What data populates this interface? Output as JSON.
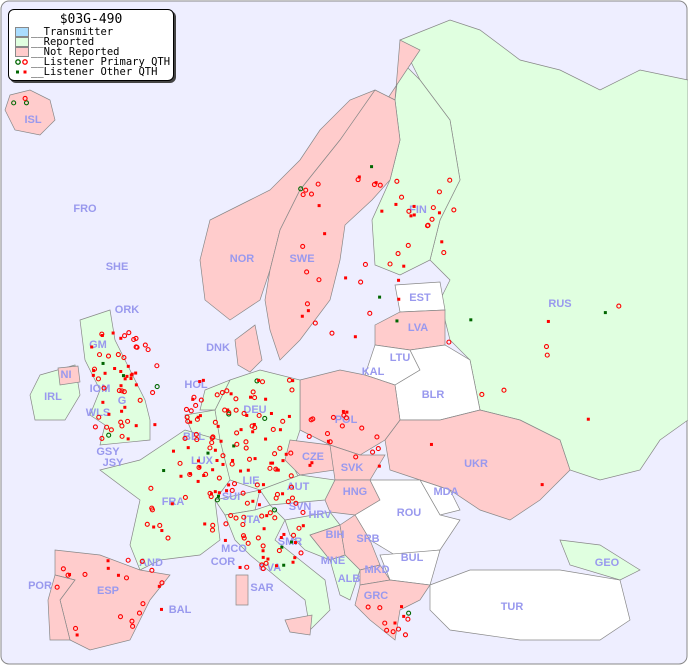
{
  "legend": {
    "title": "$03G-490",
    "items": [
      {
        "label": "__Transmitter",
        "color": "#aaddff"
      },
      {
        "label": "__Reported",
        "color": "#e0ffe0"
      },
      {
        "label": "__Not Reported",
        "color": "#ffcccc"
      },
      {
        "label": "__Listener Primary QTH",
        "marker": "circle"
      },
      {
        "label": "__Listener Other QTH",
        "marker": "square"
      }
    ]
  },
  "colors": {
    "sea": "#eeeeff",
    "reported": "#e0ffe0",
    "not_reported": "#ffcccc",
    "no_data": "#ffffff",
    "marker": "#ff0000",
    "marker_alt": "#006600"
  },
  "countries": [
    "ISL",
    "FRO",
    "SHE",
    "ORK",
    "NOR",
    "SWE",
    "FIN",
    "RUS",
    "EST",
    "LVA",
    "LTU",
    "KAL",
    "BLR",
    "DNK",
    "HOL",
    "DEU",
    "POL",
    "UKR",
    "MDA",
    "IRL",
    "NI",
    "GM",
    "IOM",
    "WLS",
    "G",
    "GSY",
    "JSY",
    "BEL",
    "LUX",
    "FRA",
    "SUI",
    "LIE",
    "CZE",
    "SVK",
    "AUT",
    "HNG",
    "ROU",
    "SVN",
    "HRV",
    "BIH",
    "SRB",
    "ITA",
    "SMR",
    "MCO",
    "COR",
    "CVA",
    "MNE",
    "ALB",
    "MKD",
    "BUL",
    "GRC",
    "TUR",
    "GEO",
    "SAR",
    "AND",
    "ESP",
    "POR",
    "BAL"
  ]
}
